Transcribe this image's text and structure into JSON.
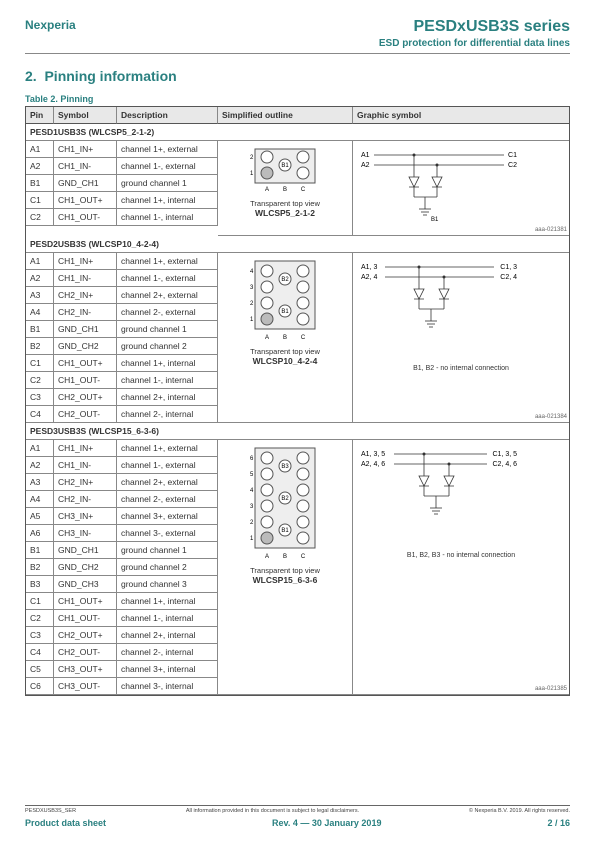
{
  "header": {
    "company": "Nexperia",
    "title": "PESDxUSB3S series",
    "subtitle": "ESD protection for differential data lines"
  },
  "section": {
    "num": "2.",
    "title": "Pinning information"
  },
  "table": {
    "caption": "Table 2. Pinning",
    "headers": {
      "pin": "Pin",
      "symbol": "Symbol",
      "desc": "Description",
      "outline": "Simplified outline",
      "graphic": "Graphic symbol"
    },
    "subhead1": "PESD1USB3S (WLCSP5_2-1-2)",
    "rows1": [
      {
        "p": "A1",
        "s": "CH1_IN+",
        "d": "channel 1+, external"
      },
      {
        "p": "A2",
        "s": "CH1_IN-",
        "d": "channel 1-, external"
      },
      {
        "p": "B1",
        "s": "GND_CH1",
        "d": "ground channel 1"
      },
      {
        "p": "C1",
        "s": "CH1_OUT+",
        "d": "channel 1+, internal"
      },
      {
        "p": "C2",
        "s": "CH1_OUT-",
        "d": "channel 1-, internal"
      }
    ],
    "pkg1": {
      "caption": "Transparent top view",
      "name": "WLCSP5_2-1-2",
      "a1": "A1",
      "a2": "A2",
      "c1": "C1",
      "c2": "C2",
      "b1": "B1",
      "ref": "aaa-021381"
    },
    "subhead2": "PESD2USB3S (WLCSP10_4-2-4)",
    "rows2": [
      {
        "p": "A1",
        "s": "CH1_IN+",
        "d": "channel 1+, external"
      },
      {
        "p": "A2",
        "s": "CH1_IN-",
        "d": "channel 1-, external"
      },
      {
        "p": "A3",
        "s": "CH2_IN+",
        "d": "channel 2+, external"
      },
      {
        "p": "A4",
        "s": "CH2_IN-",
        "d": "channel 2-, external"
      },
      {
        "p": "B1",
        "s": "GND_CH1",
        "d": "ground channel 1"
      },
      {
        "p": "B2",
        "s": "GND_CH2",
        "d": "ground channel 2"
      },
      {
        "p": "C1",
        "s": "CH1_OUT+",
        "d": "channel 1+, internal"
      },
      {
        "p": "C2",
        "s": "CH1_OUT-",
        "d": "channel 1-, internal"
      },
      {
        "p": "C3",
        "s": "CH2_OUT+",
        "d": "channel 2+, internal"
      },
      {
        "p": "C4",
        "s": "CH2_OUT-",
        "d": "channel 2-, internal"
      }
    ],
    "pkg2": {
      "caption": "Transparent top view",
      "name": "WLCSP10_4-2-4",
      "note": "B1, B2 - no internal connection",
      "ref": "aaa-021384"
    },
    "subhead3": "PESD3USB3S (WLCSP15_6-3-6)",
    "rows3": [
      {
        "p": "A1",
        "s": "CH1_IN+",
        "d": "channel 1+, external"
      },
      {
        "p": "A2",
        "s": "CH1_IN-",
        "d": "channel 1-, external"
      },
      {
        "p": "A3",
        "s": "CH2_IN+",
        "d": "channel 2+, external"
      },
      {
        "p": "A4",
        "s": "CH2_IN-",
        "d": "channel 2-, external"
      },
      {
        "p": "A5",
        "s": "CH3_IN+",
        "d": "channel 3+, external"
      },
      {
        "p": "A6",
        "s": "CH3_IN-",
        "d": "channel 3-, external"
      },
      {
        "p": "B1",
        "s": "GND_CH1",
        "d": "ground channel 1"
      },
      {
        "p": "B2",
        "s": "GND_CH2",
        "d": "ground channel 2"
      },
      {
        "p": "B3",
        "s": "GND_CH3",
        "d": "ground channel 3"
      },
      {
        "p": "C1",
        "s": "CH1_OUT+",
        "d": "channel 1+, internal"
      },
      {
        "p": "C2",
        "s": "CH1_OUT-",
        "d": "channel 1-, internal"
      },
      {
        "p": "C3",
        "s": "CH2_OUT+",
        "d": "channel 2+, internal"
      },
      {
        "p": "C4",
        "s": "CH2_OUT-",
        "d": "channel 2-, internal"
      },
      {
        "p": "C5",
        "s": "CH3_OUT+",
        "d": "channel 3+, internal"
      },
      {
        "p": "C6",
        "s": "CH3_OUT-",
        "d": "channel 3-, internal"
      }
    ],
    "pkg3": {
      "caption": "Transparent top view",
      "name": "WLCSP15_6-3-6",
      "note": "B1, B2, B3 - no internal connection",
      "ref": "aaa-021385"
    }
  },
  "schem": {
    "s1": {
      "a1": "A1",
      "a2": "A2",
      "c1": "C1",
      "c2": "C2",
      "b1": "B1"
    },
    "s2": {
      "a1": "A1, 3",
      "a2": "A2, 4",
      "c1": "C1, 3",
      "c2": "C2, 4",
      "b": "B1"
    },
    "s3": {
      "a1": "A1, 3, 5",
      "a2": "A2, 4, 6",
      "c1": "C1, 3, 5",
      "c2": "C2, 4, 6"
    }
  },
  "footer": {
    "docid": "PESDXUSB3S_SER",
    "disclaimer": "All information provided in this document is subject to legal disclaimers.",
    "copyright": "© Nexperia B.V. 2019. All rights reserved.",
    "type": "Product data sheet",
    "rev": "Rev. 4 — 30 January 2019",
    "page": "2 / 16"
  },
  "style": {
    "teal": "#2a8080"
  }
}
